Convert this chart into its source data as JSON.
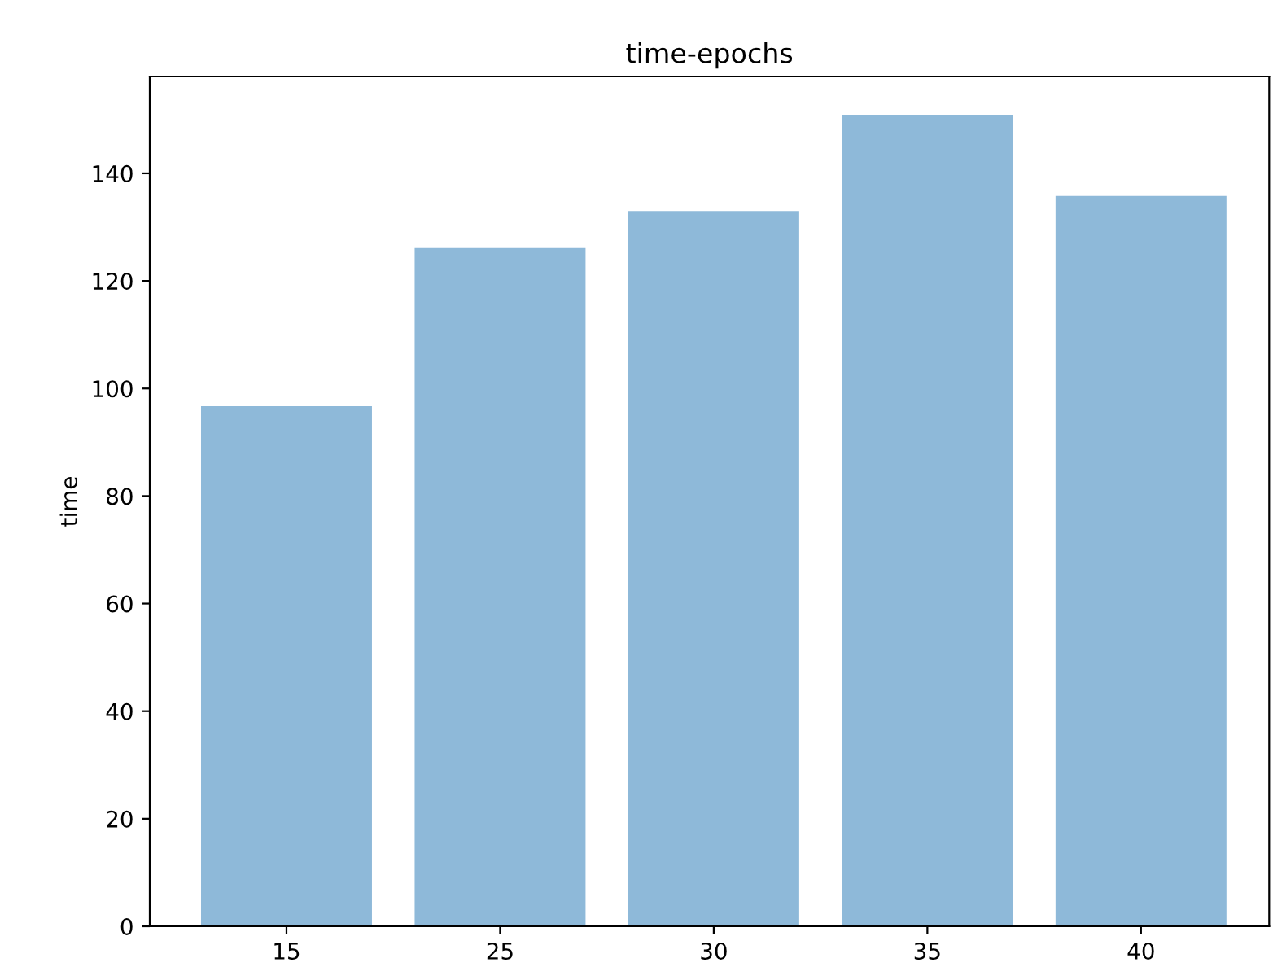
{
  "chart_data": {
    "type": "bar",
    "title": "time-epochs",
    "ylabel": "time",
    "categories": [
      "15",
      "25",
      "30",
      "35",
      "40"
    ],
    "values": [
      96.7,
      126.1,
      133,
      150.9,
      135.8
    ],
    "color": "#8eb9d9",
    "ylim": [
      0,
      158
    ],
    "yticks": [
      0,
      20,
      40,
      60,
      80,
      100,
      120,
      140
    ],
    "grid": false,
    "legend": false
  }
}
